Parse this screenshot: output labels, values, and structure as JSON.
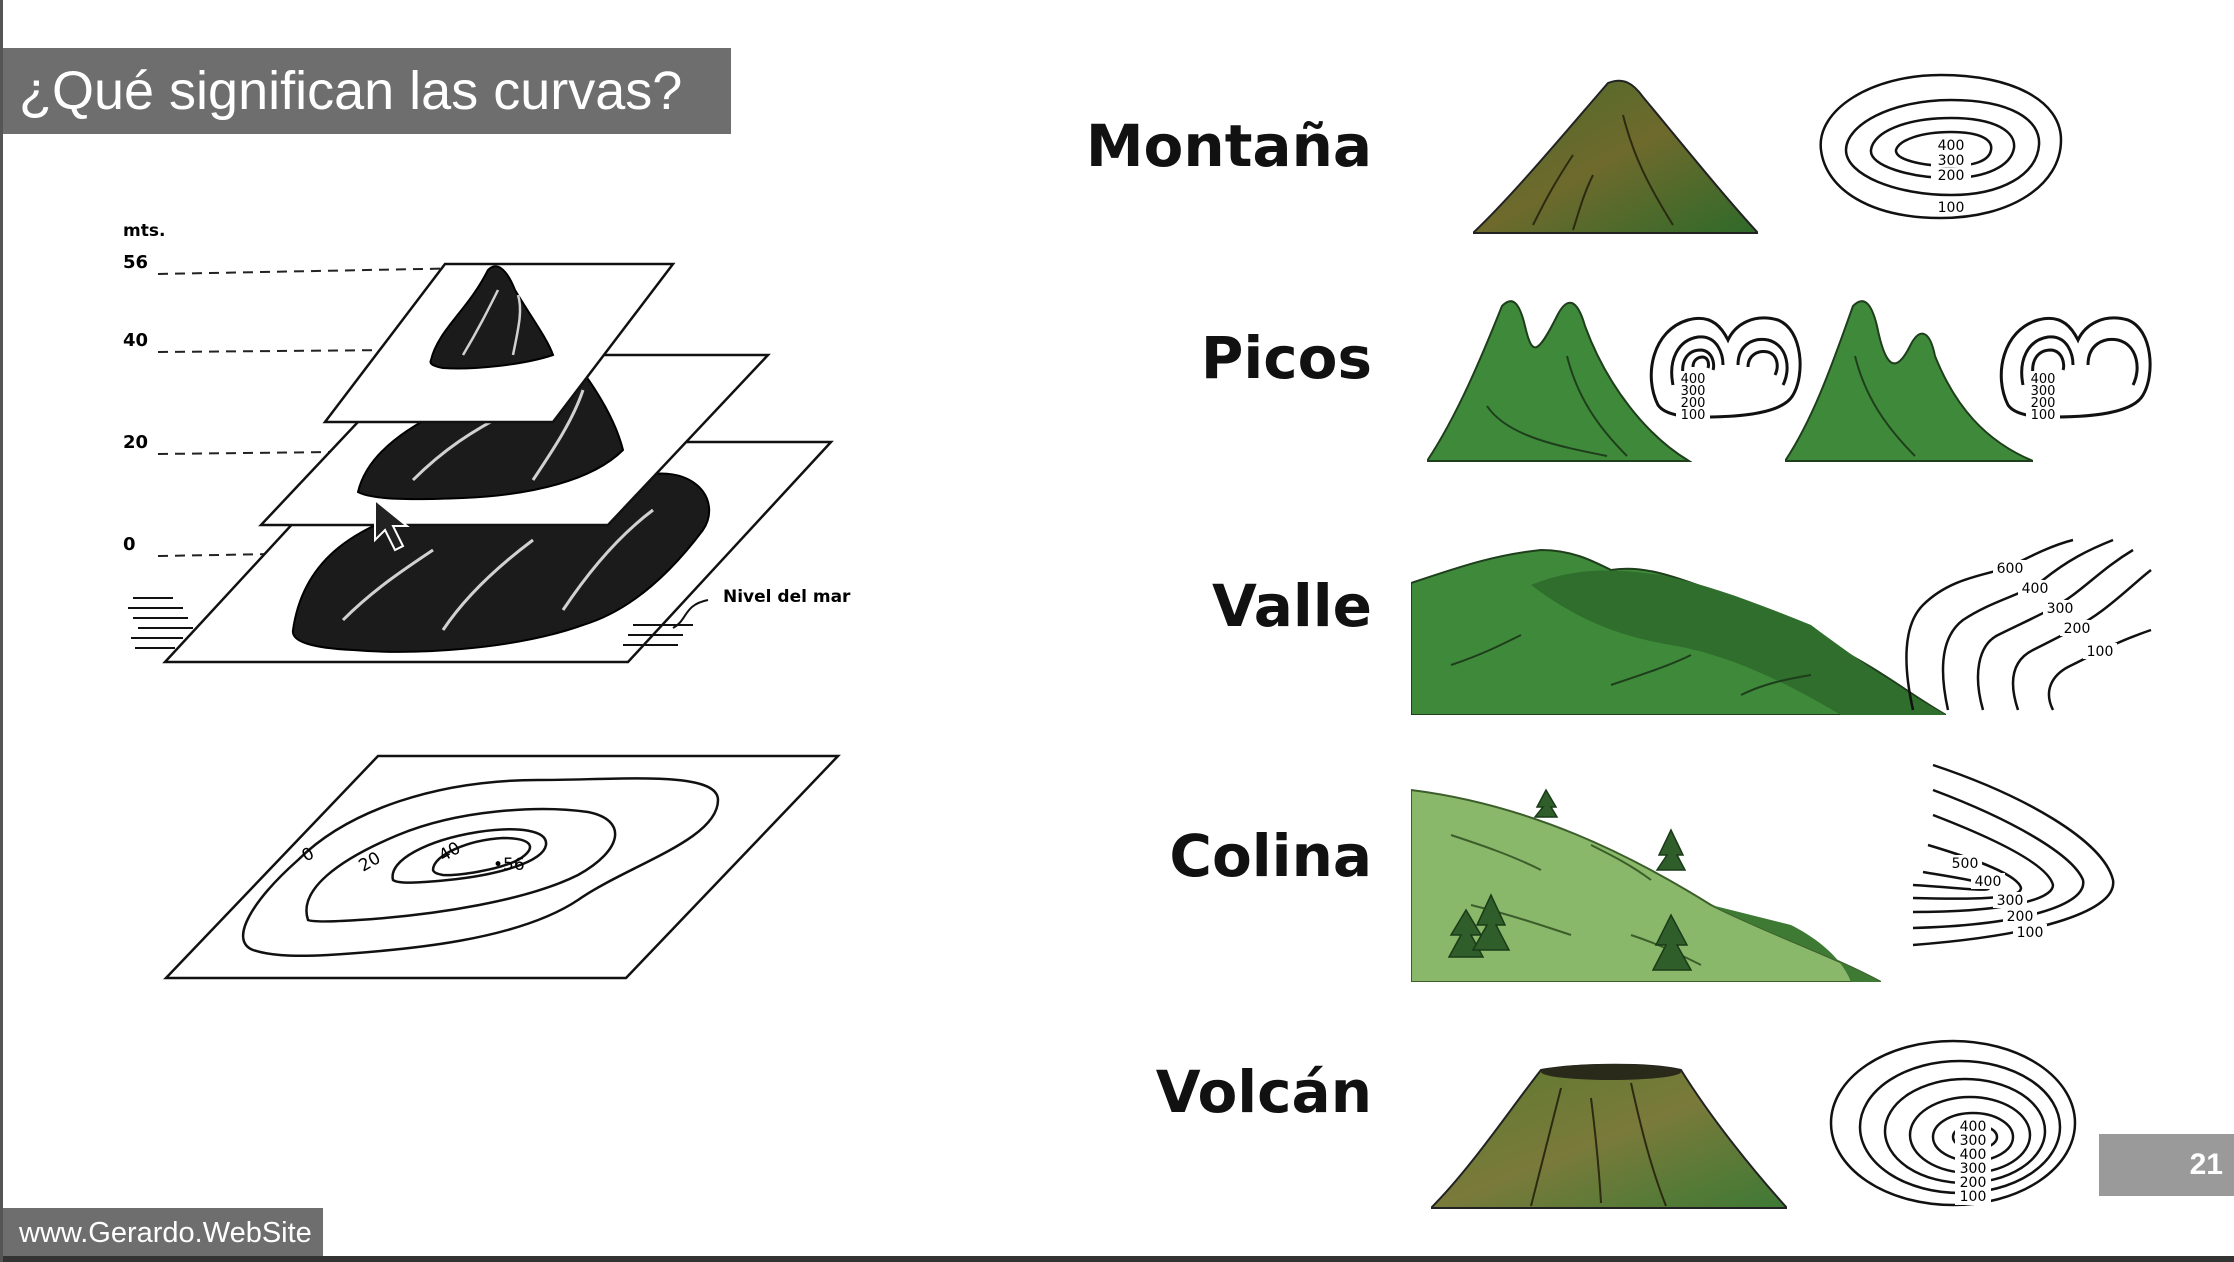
{
  "slide": {
    "title": "¿Qué significan las curvas?",
    "footer": "www.Gerardo.WebSite",
    "page_number": "21"
  },
  "diagram": {
    "unit": "mts.",
    "levels": [
      "56",
      "40",
      "20",
      "0"
    ],
    "sea_level_label": "Nivel del mar",
    "map_labels": [
      "0",
      "20",
      "40",
      "•56"
    ]
  },
  "landforms": [
    {
      "name": "Montaña",
      "contours": [
        "400",
        "300",
        "200",
        "100"
      ]
    },
    {
      "name": "Picos",
      "contours": [
        "400",
        "300",
        "200",
        "100"
      ]
    },
    {
      "name": "Valle",
      "contours": [
        "600",
        "400",
        "300",
        "200",
        "100"
      ]
    },
    {
      "name": "Colina",
      "contours": [
        "500",
        "400",
        "300",
        "200",
        "100"
      ]
    },
    {
      "name": "Volcán",
      "contours": [
        "400",
        "300",
        "400",
        "300",
        "200",
        "100"
      ]
    }
  ]
}
